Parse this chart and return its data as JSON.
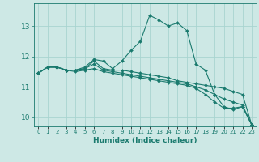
{
  "xlabel": "Humidex (Indice chaleur)",
  "ylabel": "",
  "bg_color": "#cde8e5",
  "grid_color": "#a8d4d0",
  "line_color": "#1a7a6e",
  "xlim": [
    -0.5,
    23.5
  ],
  "ylim": [
    9.7,
    13.75
  ],
  "yticks": [
    10,
    11,
    12,
    13
  ],
  "xtick_labels": [
    "0",
    "1",
    "2",
    "3",
    "4",
    "5",
    "6",
    "7",
    "8",
    "9",
    "10",
    "11",
    "12",
    "13",
    "14",
    "15",
    "16",
    "17",
    "18",
    "19",
    "20",
    "21",
    "22",
    "23"
  ],
  "lines": [
    {
      "x": [
        0,
        1,
        2,
        3,
        4,
        5,
        6,
        7,
        8,
        9,
        10,
        11,
        12,
        13,
        14,
        15,
        16,
        17,
        18,
        19,
        20,
        21,
        22,
        23
      ],
      "y": [
        11.45,
        11.65,
        11.65,
        11.55,
        11.55,
        11.65,
        11.9,
        11.85,
        11.6,
        11.85,
        12.2,
        12.5,
        13.35,
        13.2,
        13.0,
        13.1,
        12.85,
        11.75,
        11.55,
        10.75,
        10.35,
        10.25,
        10.35,
        9.75
      ]
    },
    {
      "x": [
        0,
        1,
        2,
        3,
        4,
        5,
        6,
        7,
        8,
        9,
        10,
        11,
        12,
        13,
        14,
        15,
        16,
        17,
        18,
        19,
        20,
        21,
        22,
        23
      ],
      "y": [
        11.45,
        11.65,
        11.65,
        11.55,
        11.55,
        11.6,
        11.85,
        11.6,
        11.55,
        11.55,
        11.5,
        11.45,
        11.4,
        11.35,
        11.3,
        11.2,
        11.15,
        11.1,
        11.05,
        11.0,
        10.95,
        10.85,
        10.75,
        9.75
      ]
    },
    {
      "x": [
        0,
        1,
        2,
        3,
        4,
        5,
        6,
        7,
        8,
        9,
        10,
        11,
        12,
        13,
        14,
        15,
        16,
        17,
        18,
        19,
        20,
        21,
        22,
        23
      ],
      "y": [
        11.45,
        11.65,
        11.65,
        11.55,
        11.55,
        11.6,
        11.75,
        11.55,
        11.5,
        11.45,
        11.4,
        11.35,
        11.3,
        11.25,
        11.2,
        11.15,
        11.1,
        11.0,
        10.9,
        10.75,
        10.6,
        10.5,
        10.4,
        9.75
      ]
    },
    {
      "x": [
        0,
        1,
        2,
        3,
        4,
        5,
        6,
        7,
        8,
        9,
        10,
        11,
        12,
        13,
        14,
        15,
        16,
        17,
        18,
        19,
        20,
        21,
        22,
        23
      ],
      "y": [
        11.45,
        11.65,
        11.65,
        11.55,
        11.5,
        11.55,
        11.6,
        11.5,
        11.45,
        11.4,
        11.35,
        11.3,
        11.25,
        11.2,
        11.15,
        11.1,
        11.05,
        10.95,
        10.75,
        10.5,
        10.3,
        10.3,
        10.35,
        9.75
      ]
    }
  ]
}
